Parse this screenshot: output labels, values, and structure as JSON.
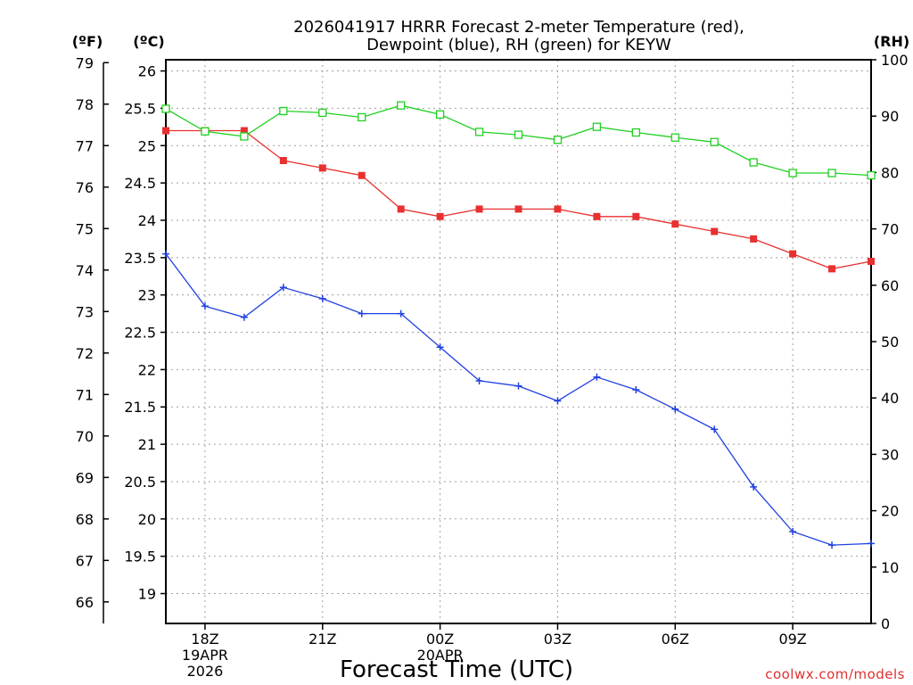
{
  "chart_data": {
    "type": "line",
    "title": [
      "2026041917 HRRR Forecast 2-meter Temperature (red),",
      "Dewpoint (blue), RH (green) for KEYW"
    ],
    "xlabel": "Forecast Time (UTC)",
    "credit": "coolwx.com/models",
    "units": {
      "fahrenheit": "(ºF)",
      "celsius": "(ºC)",
      "rh": "(RH)"
    },
    "x_hours": [
      17,
      18,
      19,
      20,
      21,
      22,
      23,
      24,
      25,
      26,
      27,
      28,
      29,
      30,
      31,
      32,
      33,
      34,
      35
    ],
    "x_ticks": [
      {
        "hour": 18,
        "lines": [
          "18Z",
          "19APR",
          "2026"
        ]
      },
      {
        "hour": 21,
        "lines": [
          "21Z"
        ]
      },
      {
        "hour": 24,
        "lines": [
          "00Z",
          "20APR"
        ]
      },
      {
        "hour": 27,
        "lines": [
          "03Z"
        ]
      },
      {
        "hour": 30,
        "lines": [
          "06Z"
        ]
      },
      {
        "hour": 33,
        "lines": [
          "09Z"
        ]
      }
    ],
    "xlim": [
      17,
      35
    ],
    "ylim_c": [
      18.6,
      26.15
    ],
    "ylim_rh": [
      0,
      100
    ],
    "celsius_ticks": [
      "19",
      "19.5",
      "20",
      "20.5",
      "21",
      "21.5",
      "22",
      "22.5",
      "23",
      "23.5",
      "24",
      "24.5",
      "25",
      "25.5",
      "26"
    ],
    "fahrenheit_ticks": [
      "66",
      "67",
      "68",
      "69",
      "70",
      "71",
      "72",
      "73",
      "74",
      "75",
      "76",
      "77",
      "78",
      "79"
    ],
    "rh_ticks": [
      "0",
      "10",
      "20",
      "30",
      "40",
      "50",
      "60",
      "70",
      "80",
      "90",
      "100"
    ],
    "series": [
      {
        "name": "Temperature",
        "axis": "celsius",
        "color": "#e83030",
        "marker": "filled-square",
        "values": [
          25.2,
          25.2,
          25.2,
          24.8,
          24.7,
          24.6,
          24.15,
          24.05,
          24.15,
          24.15,
          24.15,
          24.05,
          24.05,
          23.95,
          23.85,
          23.75,
          23.55,
          23.35,
          23.45
        ]
      },
      {
        "name": "Dewpoint",
        "axis": "celsius",
        "color": "#2040e0",
        "marker": "plus",
        "values": [
          23.55,
          22.85,
          22.7,
          23.1,
          22.95,
          22.75,
          22.75,
          22.3,
          21.85,
          21.78,
          21.58,
          21.9,
          21.73,
          21.47,
          21.2,
          20.43,
          19.83,
          19.65,
          19.67
        ]
      },
      {
        "name": "RH",
        "axis": "rh",
        "color": "#20d020",
        "marker": "open-square",
        "values": [
          91.3,
          87.3,
          86.4,
          90.9,
          90.6,
          89.8,
          91.9,
          90.3,
          87.2,
          86.7,
          85.8,
          88.1,
          87.1,
          86.2,
          85.4,
          81.8,
          79.9,
          79.9,
          79.5
        ]
      }
    ]
  }
}
